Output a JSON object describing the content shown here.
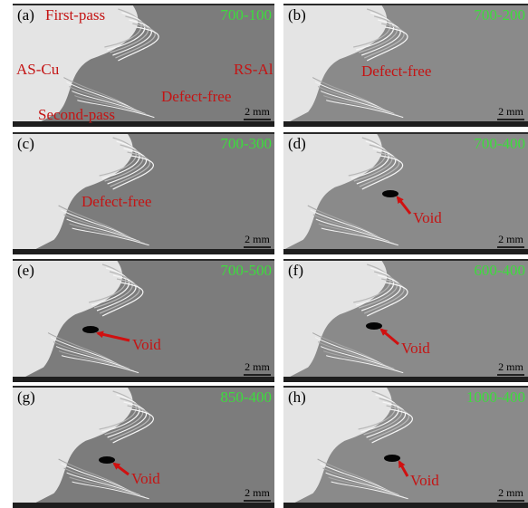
{
  "panels": [
    {
      "label": "(a)",
      "condition": "700-100",
      "annotations": [
        "First-pass",
        "AS-Cu",
        "RS-Al",
        "Defect-free",
        "Second-pass"
      ],
      "scale": "2 mm"
    },
    {
      "label": "(b)",
      "condition": "700-200",
      "annotations": [
        "Defect-free"
      ],
      "scale": "2 mm"
    },
    {
      "label": "(c)",
      "condition": "700-300",
      "annotations": [
        "Defect-free"
      ],
      "scale": "2 mm"
    },
    {
      "label": "(d)",
      "condition": "700-400",
      "annotations": [
        "Void"
      ],
      "scale": "2 mm"
    },
    {
      "label": "(e)",
      "condition": "700-500",
      "annotations": [
        "Void"
      ],
      "scale": "2 mm"
    },
    {
      "label": "(f)",
      "condition": "600-400",
      "annotations": [
        "Void"
      ],
      "scale": "2 mm"
    },
    {
      "label": "(g)",
      "condition": "850-400",
      "annotations": [
        "Void"
      ],
      "scale": "2 mm"
    },
    {
      "label": "(h)",
      "condition": "1000-400",
      "annotations": [
        "Void"
      ],
      "scale": "2 mm"
    }
  ]
}
